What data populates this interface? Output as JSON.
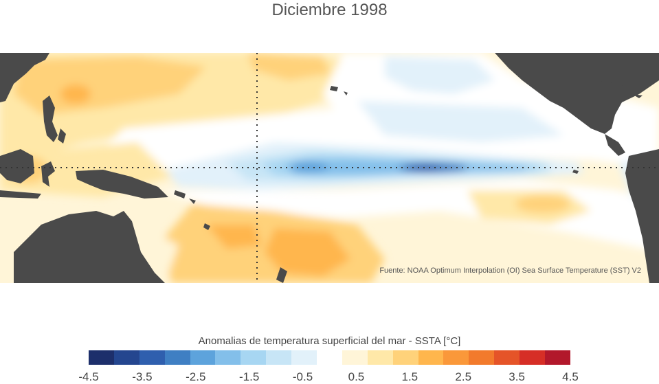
{
  "title": "Diciembre 1998",
  "source": "Fuente: NOAA Optimum Interpolation (OI) Sea Surface Temperature (SST) V2",
  "colorbar": {
    "label": "Anomalias de temperatura superficial del mar - SSTA  [°C]",
    "colors": [
      "#1d2f6b",
      "#24468f",
      "#2f5fae",
      "#3f7fc3",
      "#5da3dc",
      "#83bfea",
      "#a7d6f2",
      "#c7e5f6",
      "#e2f1fa",
      "#ffffff",
      "#fff5d8",
      "#ffe8a8",
      "#ffd27a",
      "#ffb64d",
      "#fa983a",
      "#f27a2c",
      "#e55428",
      "#d62e26",
      "#b2182b"
    ],
    "tick_labels": [
      "-4.5",
      "-3.5",
      "-2.5",
      "-1.5",
      "-0.5",
      "0.5",
      "1.5",
      "2.5",
      "3.5",
      "4.5"
    ]
  },
  "map": {
    "type": "sea_surface_temperature_anomaly",
    "region": "Tropical Pacific",
    "reference_lines": [
      "equator",
      "date_line"
    ],
    "land_color": "#4a4a4a",
    "ocean_neutral_color": "#ffffff"
  }
}
